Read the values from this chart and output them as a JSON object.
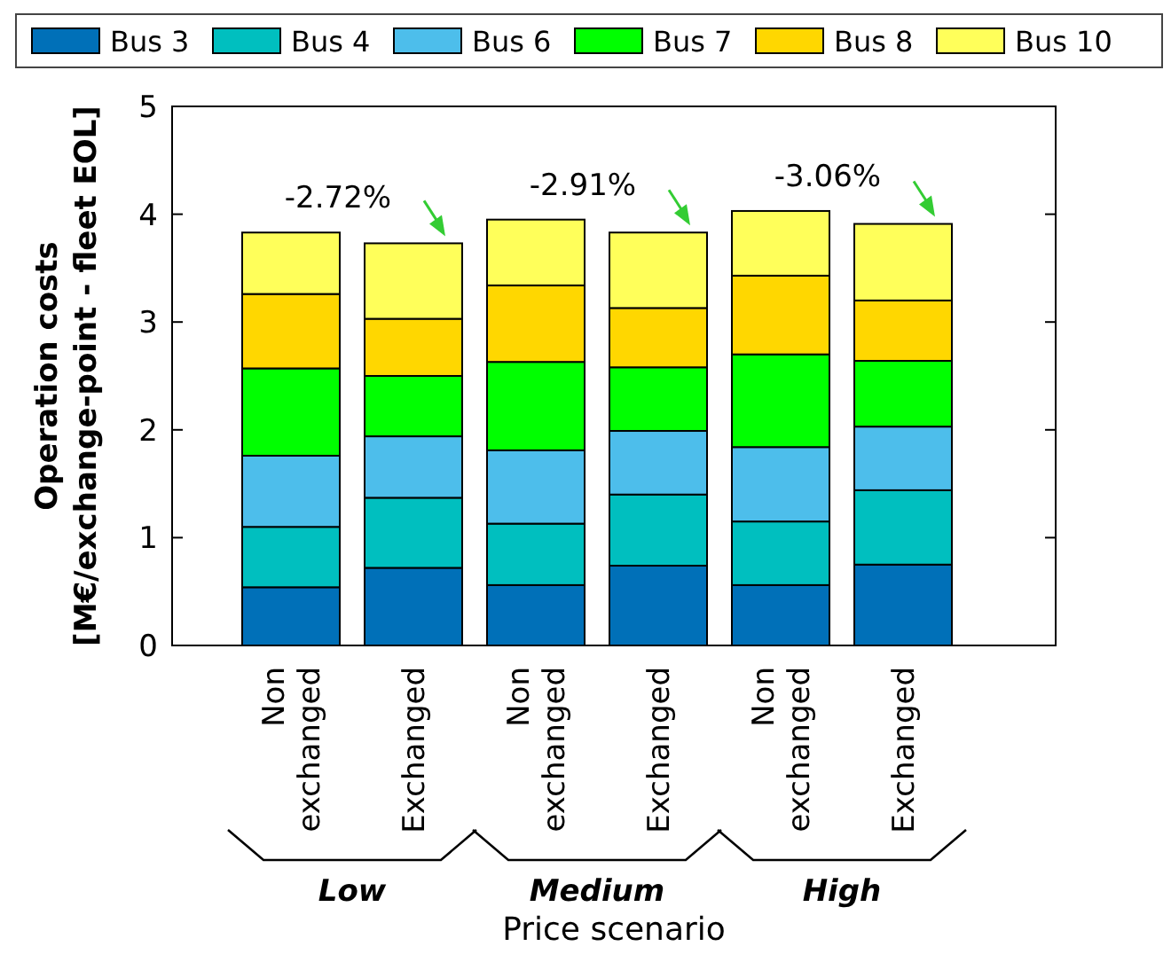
{
  "chart_data": {
    "type": "bar",
    "stacked": true,
    "categories": [
      "Non exchanged",
      "Exchanged",
      "Non exchanged",
      "Exchanged",
      "Non exchanged",
      "Exchanged"
    ],
    "series": [
      {
        "name": "Bus 3",
        "color": "#0070b8",
        "values": [
          0.54,
          0.72,
          0.56,
          0.74,
          0.56,
          0.75
        ]
      },
      {
        "name": "Bus 4",
        "color": "#00bfbf",
        "values": [
          0.56,
          0.65,
          0.57,
          0.66,
          0.59,
          0.69
        ]
      },
      {
        "name": "Bus 6",
        "color": "#4dbeeb",
        "values": [
          0.66,
          0.57,
          0.68,
          0.59,
          0.69,
          0.59
        ]
      },
      {
        "name": "Bus 7",
        "color": "#00ff00",
        "values": [
          0.81,
          0.56,
          0.82,
          0.59,
          0.86,
          0.61
        ]
      },
      {
        "name": "Bus 8",
        "color": "#ffd700",
        "values": [
          0.69,
          0.53,
          0.71,
          0.55,
          0.73,
          0.56
        ]
      },
      {
        "name": "Bus 10",
        "color": "#ffff5a",
        "values": [
          0.57,
          0.7,
          0.61,
          0.7,
          0.6,
          0.71
        ]
      }
    ],
    "ylim": [
      0,
      5
    ],
    "yticks": [
      0,
      1,
      2,
      3,
      4,
      5
    ],
    "ylabel": "Operation costs\n[M€/exchange-point - fleet EOL]",
    "xlabel": "Price scenario",
    "annotations": [
      "-2.72%",
      "-2.91%",
      "-3.06%",
      "Low",
      "Medium",
      "High"
    ],
    "legend": "top",
    "grid": false
  }
}
